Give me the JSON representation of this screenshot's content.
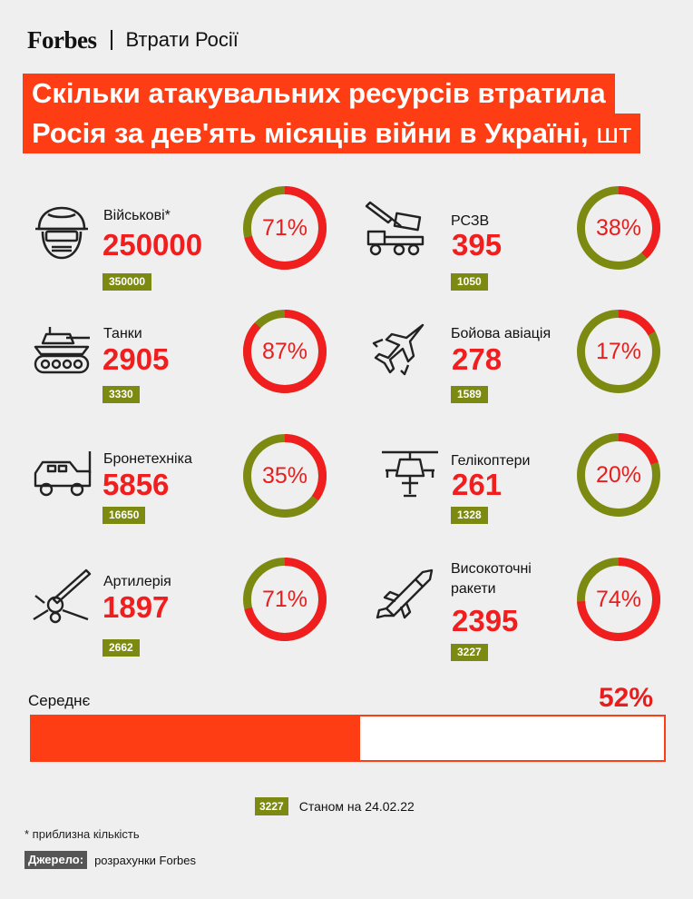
{
  "header": {
    "brand": "Forbes",
    "section": "Втрати Росії"
  },
  "title": {
    "line1": "Скільки атакувальних ресурсів втратила",
    "line2": "Росія за дев'ять місяців війни в Україні,",
    "unit": "шт"
  },
  "chart_data": {
    "type": "donut",
    "colors": {
      "loss": "#f01e1e",
      "remaining": "#7d8a12",
      "accent": "#ff3d14"
    },
    "items": [
      {
        "label": "Військові*",
        "value": "250000",
        "prewar": "350000",
        "percent_label": "71%",
        "percent": 71,
        "icon": "soldier-helmet-icon"
      },
      {
        "label": "РСЗВ",
        "value": "395",
        "prewar": "1050",
        "percent_label": "38%",
        "percent": 38,
        "icon": "rocket-launcher-truck-icon"
      },
      {
        "label": "Танки",
        "value": "2905",
        "prewar": "3330",
        "percent_label": "87%",
        "percent": 87,
        "icon": "tank-icon"
      },
      {
        "label": "Бойова авіація",
        "value": "278",
        "prewar": "1589",
        "percent_label": "17%",
        "percent": 17,
        "icon": "fighter-jet-icon"
      },
      {
        "label": "Бронетехніка",
        "value": "5856",
        "prewar": "16650",
        "percent_label": "35%",
        "percent": 35,
        "icon": "armored-vehicle-icon"
      },
      {
        "label": "Гелікоптери",
        "value": "261",
        "prewar": "1328",
        "percent_label": "20%",
        "percent": 20,
        "icon": "helicopter-icon"
      },
      {
        "label": "Артилерія",
        "value": "1897",
        "prewar": "2662",
        "percent_label": "71%",
        "percent": 71,
        "icon": "artillery-gun-icon"
      },
      {
        "label": "Високоточні ракети",
        "label_line1": "Високоточні",
        "label_line2": "ракети",
        "value": "2395",
        "prewar": "3227",
        "percent_label": "74%",
        "percent": 74,
        "icon": "missile-icon"
      }
    ],
    "average": {
      "label": "Середнє",
      "percent_label": "52%",
      "percent": 52
    }
  },
  "legend": {
    "swatch": "3227",
    "text": "Станом на 24.02.22"
  },
  "footnote": "* приблизна кількість",
  "source": {
    "label": "Джерело:",
    "text": "розрахунки Forbes"
  }
}
